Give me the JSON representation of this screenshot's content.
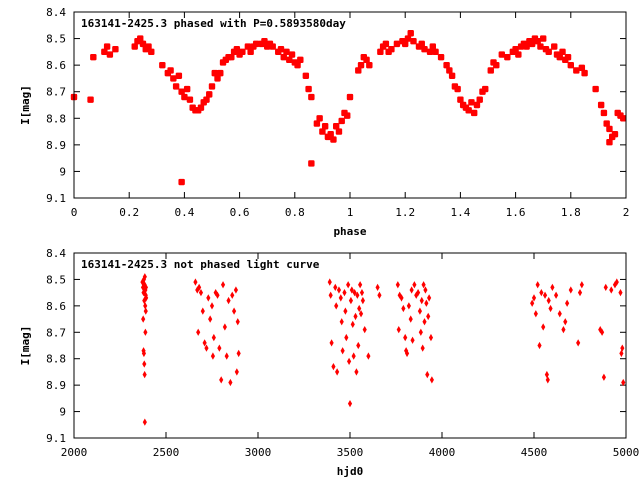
{
  "chart_data": [
    {
      "type": "scatter",
      "title": "163141-2425.3 phased with P=0.5893580day",
      "xlabel": "phase",
      "ylabel": "I[mag]",
      "xlim": [
        0,
        2
      ],
      "ylim": [
        9.1,
        8.4
      ],
      "y_inverted": true,
      "xticks": [
        "0",
        "0.2",
        "0.4",
        "0.6",
        "0.8",
        "1",
        "1.2",
        "1.4",
        "1.6",
        "1.8",
        "2"
      ],
      "yticks": [
        "8.4",
        "8.5",
        "8.6",
        "8.7",
        "8.8",
        "8.9",
        "9",
        "9.1"
      ],
      "marker_color": "#ff0000",
      "grid": false,
      "points": [
        [
          0.0,
          8.72
        ],
        [
          0.06,
          8.73
        ],
        [
          0.07,
          8.57
        ],
        [
          0.11,
          8.55
        ],
        [
          0.12,
          8.53
        ],
        [
          0.13,
          8.56
        ],
        [
          0.15,
          8.54
        ],
        [
          0.22,
          8.53
        ],
        [
          0.23,
          8.51
        ],
        [
          0.24,
          8.5
        ],
        [
          0.25,
          8.52
        ],
        [
          0.26,
          8.54
        ],
        [
          0.27,
          8.53
        ],
        [
          0.28,
          8.55
        ],
        [
          0.32,
          8.6
        ],
        [
          0.34,
          8.63
        ],
        [
          0.35,
          8.62
        ],
        [
          0.36,
          8.65
        ],
        [
          0.37,
          8.68
        ],
        [
          0.38,
          8.64
        ],
        [
          0.39,
          8.7
        ],
        [
          0.39,
          9.04
        ],
        [
          0.4,
          8.72
        ],
        [
          0.41,
          8.69
        ],
        [
          0.42,
          8.73
        ],
        [
          0.43,
          8.76
        ],
        [
          0.44,
          8.77
        ],
        [
          0.45,
          8.77
        ],
        [
          0.46,
          8.76
        ],
        [
          0.47,
          8.74
        ],
        [
          0.48,
          8.73
        ],
        [
          0.49,
          8.71
        ],
        [
          0.5,
          8.68
        ],
        [
          0.51,
          8.63
        ],
        [
          0.52,
          8.65
        ],
        [
          0.53,
          8.63
        ],
        [
          0.54,
          8.59
        ],
        [
          0.55,
          8.58
        ],
        [
          0.56,
          8.57
        ],
        [
          0.57,
          8.57
        ],
        [
          0.58,
          8.55
        ],
        [
          0.59,
          8.54
        ],
        [
          0.6,
          8.56
        ],
        [
          0.61,
          8.55
        ],
        [
          0.63,
          8.53
        ],
        [
          0.64,
          8.55
        ],
        [
          0.65,
          8.53
        ],
        [
          0.66,
          8.52
        ],
        [
          0.68,
          8.52
        ],
        [
          0.69,
          8.51
        ],
        [
          0.7,
          8.53
        ],
        [
          0.71,
          8.52
        ],
        [
          0.72,
          8.53
        ],
        [
          0.74,
          8.55
        ],
        [
          0.75,
          8.54
        ],
        [
          0.76,
          8.57
        ],
        [
          0.77,
          8.55
        ],
        [
          0.78,
          8.58
        ],
        [
          0.79,
          8.56
        ],
        [
          0.8,
          8.59
        ],
        [
          0.81,
          8.6
        ],
        [
          0.82,
          8.58
        ],
        [
          0.84,
          8.64
        ],
        [
          0.85,
          8.69
        ],
        [
          0.86,
          8.72
        ],
        [
          0.86,
          8.97
        ],
        [
          0.88,
          8.82
        ],
        [
          0.89,
          8.8
        ],
        [
          0.9,
          8.85
        ],
        [
          0.91,
          8.83
        ],
        [
          0.92,
          8.87
        ],
        [
          0.93,
          8.86
        ],
        [
          0.94,
          8.88
        ],
        [
          0.95,
          8.83
        ],
        [
          0.96,
          8.85
        ],
        [
          0.97,
          8.81
        ],
        [
          0.98,
          8.78
        ],
        [
          0.99,
          8.79
        ],
        [
          1.0,
          8.72
        ],
        [
          1.03,
          8.62
        ],
        [
          1.04,
          8.6
        ],
        [
          1.05,
          8.57
        ],
        [
          1.06,
          8.58
        ],
        [
          1.07,
          8.6
        ],
        [
          1.11,
          8.55
        ],
        [
          1.12,
          8.53
        ],
        [
          1.13,
          8.52
        ],
        [
          1.14,
          8.55
        ],
        [
          1.15,
          8.54
        ],
        [
          1.17,
          8.52
        ],
        [
          1.19,
          8.51
        ],
        [
          1.2,
          8.52
        ],
        [
          1.21,
          8.5
        ],
        [
          1.22,
          8.48
        ],
        [
          1.23,
          8.51
        ],
        [
          1.25,
          8.53
        ],
        [
          1.26,
          8.52
        ],
        [
          1.27,
          8.54
        ],
        [
          1.29,
          8.55
        ],
        [
          1.3,
          8.53
        ],
        [
          1.31,
          8.55
        ],
        [
          1.33,
          8.57
        ],
        [
          1.35,
          8.6
        ],
        [
          1.36,
          8.62
        ],
        [
          1.37,
          8.64
        ],
        [
          1.38,
          8.68
        ],
        [
          1.39,
          8.69
        ],
        [
          1.4,
          8.73
        ],
        [
          1.41,
          8.75
        ],
        [
          1.42,
          8.76
        ],
        [
          1.43,
          8.77
        ],
        [
          1.44,
          8.74
        ],
        [
          1.45,
          8.78
        ],
        [
          1.46,
          8.75
        ],
        [
          1.47,
          8.73
        ],
        [
          1.48,
          8.7
        ],
        [
          1.49,
          8.69
        ],
        [
          1.51,
          8.62
        ],
        [
          1.52,
          8.59
        ],
        [
          1.53,
          8.6
        ],
        [
          1.55,
          8.56
        ],
        [
          1.57,
          8.57
        ],
        [
          1.59,
          8.55
        ],
        [
          1.6,
          8.54
        ],
        [
          1.61,
          8.56
        ],
        [
          1.62,
          8.53
        ],
        [
          1.63,
          8.52
        ],
        [
          1.64,
          8.53
        ],
        [
          1.65,
          8.51
        ],
        [
          1.66,
          8.52
        ],
        [
          1.67,
          8.5
        ],
        [
          1.68,
          8.51
        ],
        [
          1.69,
          8.53
        ],
        [
          1.7,
          8.5
        ],
        [
          1.71,
          8.54
        ],
        [
          1.72,
          8.55
        ],
        [
          1.74,
          8.53
        ],
        [
          1.75,
          8.56
        ],
        [
          1.76,
          8.57
        ],
        [
          1.77,
          8.55
        ],
        [
          1.78,
          8.58
        ],
        [
          1.79,
          8.57
        ],
        [
          1.8,
          8.6
        ],
        [
          1.82,
          8.62
        ],
        [
          1.84,
          8.61
        ],
        [
          1.85,
          8.63
        ],
        [
          1.89,
          8.69
        ],
        [
          1.91,
          8.75
        ],
        [
          1.92,
          8.78
        ],
        [
          1.93,
          8.82
        ],
        [
          1.94,
          8.84
        ],
        [
          1.94,
          8.89
        ],
        [
          1.95,
          8.87
        ],
        [
          1.96,
          8.86
        ],
        [
          1.97,
          8.78
        ],
        [
          1.98,
          8.79
        ],
        [
          1.99,
          8.8
        ]
      ]
    },
    {
      "type": "scatter",
      "title": "163141-2425.3 not phased light curve",
      "xlabel": "hjd0",
      "ylabel": "I[mag]",
      "xlim": [
        2000,
        5000
      ],
      "ylim": [
        9.1,
        8.4
      ],
      "y_inverted": true,
      "xticks": [
        "2000",
        "2500",
        "3000",
        "3500",
        "4000",
        "4500",
        "5000"
      ],
      "yticks": [
        "8.4",
        "8.5",
        "8.6",
        "8.7",
        "8.8",
        "8.9",
        "9",
        "9.1"
      ],
      "marker_color": "#ff0000",
      "grid": false,
      "points": [
        [
          2372,
          8.51
        ],
        [
          2375,
          8.53
        ],
        [
          2378,
          8.55
        ],
        [
          2380,
          8.5
        ],
        [
          2382,
          8.58
        ],
        [
          2384,
          8.52
        ],
        [
          2385,
          8.49
        ],
        [
          2387,
          8.6
        ],
        [
          2388,
          8.54
        ],
        [
          2390,
          8.56
        ],
        [
          2391,
          8.53
        ],
        [
          2392,
          8.57
        ],
        [
          2376,
          8.65
        ],
        [
          2378,
          8.77
        ],
        [
          2380,
          8.78
        ],
        [
          2382,
          8.82
        ],
        [
          2384,
          8.86
        ],
        [
          2385,
          9.04
        ],
        [
          2388,
          8.7
        ],
        [
          2390,
          8.62
        ],
        [
          2670,
          8.54
        ],
        [
          2680,
          8.53
        ],
        [
          2690,
          8.55
        ],
        [
          2700,
          8.62
        ],
        [
          2710,
          8.74
        ],
        [
          2720,
          8.76
        ],
        [
          2730,
          8.57
        ],
        [
          2740,
          8.65
        ],
        [
          2750,
          8.6
        ],
        [
          2755,
          8.79
        ],
        [
          2760,
          8.72
        ],
        [
          2770,
          8.55
        ],
        [
          2780,
          8.56
        ],
        [
          2790,
          8.76
        ],
        [
          2800,
          8.88
        ],
        [
          2810,
          8.52
        ],
        [
          2820,
          8.68
        ],
        [
          2830,
          8.79
        ],
        [
          2840,
          8.58
        ],
        [
          2850,
          8.89
        ],
        [
          2860,
          8.56
        ],
        [
          2870,
          8.62
        ],
        [
          2880,
          8.54
        ],
        [
          2885,
          8.85
        ],
        [
          2890,
          8.66
        ],
        [
          2895,
          8.78
        ],
        [
          2660,
          8.51
        ],
        [
          2675,
          8.7
        ],
        [
          3390,
          8.51
        ],
        [
          3395,
          8.56
        ],
        [
          3400,
          8.74
        ],
        [
          3410,
          8.83
        ],
        [
          3420,
          8.53
        ],
        [
          3425,
          8.6
        ],
        [
          3430,
          8.85
        ],
        [
          3440,
          8.54
        ],
        [
          3450,
          8.57
        ],
        [
          3455,
          8.66
        ],
        [
          3460,
          8.77
        ],
        [
          3470,
          8.55
        ],
        [
          3475,
          8.62
        ],
        [
          3480,
          8.72
        ],
        [
          3490,
          8.52
        ],
        [
          3495,
          8.81
        ],
        [
          3500,
          8.97
        ],
        [
          3505,
          8.58
        ],
        [
          3510,
          8.54
        ],
        [
          3515,
          8.67
        ],
        [
          3520,
          8.79
        ],
        [
          3525,
          8.55
        ],
        [
          3530,
          8.64
        ],
        [
          3535,
          8.85
        ],
        [
          3540,
          8.56
        ],
        [
          3545,
          8.75
        ],
        [
          3550,
          8.61
        ],
        [
          3555,
          8.52
        ],
        [
          3560,
          8.63
        ],
        [
          3565,
          8.55
        ],
        [
          3570,
          8.58
        ],
        [
          3580,
          8.69
        ],
        [
          3600,
          8.79
        ],
        [
          3650,
          8.53
        ],
        [
          3660,
          8.56
        ],
        [
          3760,
          8.52
        ],
        [
          3765,
          8.69
        ],
        [
          3770,
          8.56
        ],
        [
          3780,
          8.57
        ],
        [
          3790,
          8.61
        ],
        [
          3800,
          8.72
        ],
        [
          3805,
          8.77
        ],
        [
          3810,
          8.78
        ],
        [
          3820,
          8.6
        ],
        [
          3830,
          8.65
        ],
        [
          3835,
          8.54
        ],
        [
          3840,
          8.73
        ],
        [
          3850,
          8.52
        ],
        [
          3860,
          8.56
        ],
        [
          3870,
          8.55
        ],
        [
          3880,
          8.62
        ],
        [
          3885,
          8.7
        ],
        [
          3890,
          8.58
        ],
        [
          3895,
          8.76
        ],
        [
          3900,
          8.52
        ],
        [
          3905,
          8.66
        ],
        [
          3910,
          8.54
        ],
        [
          3915,
          8.59
        ],
        [
          3920,
          8.86
        ],
        [
          3925,
          8.64
        ],
        [
          3930,
          8.57
        ],
        [
          3940,
          8.72
        ],
        [
          3945,
          8.88
        ],
        [
          4490,
          8.59
        ],
        [
          4500,
          8.57
        ],
        [
          4510,
          8.63
        ],
        [
          4520,
          8.52
        ],
        [
          4530,
          8.75
        ],
        [
          4540,
          8.55
        ],
        [
          4550,
          8.68
        ],
        [
          4560,
          8.56
        ],
        [
          4570,
          8.86
        ],
        [
          4575,
          8.88
        ],
        [
          4580,
          8.58
        ],
        [
          4590,
          8.61
        ],
        [
          4600,
          8.53
        ],
        [
          4620,
          8.56
        ],
        [
          4640,
          8.63
        ],
        [
          4660,
          8.69
        ],
        [
          4670,
          8.66
        ],
        [
          4680,
          8.59
        ],
        [
          4700,
          8.54
        ],
        [
          4740,
          8.74
        ],
        [
          4750,
          8.55
        ],
        [
          4760,
          8.52
        ],
        [
          4860,
          8.69
        ],
        [
          4870,
          8.7
        ],
        [
          4880,
          8.87
        ],
        [
          4890,
          8.53
        ],
        [
          4920,
          8.54
        ],
        [
          4940,
          8.52
        ],
        [
          4950,
          8.51
        ],
        [
          4970,
          8.55
        ],
        [
          4975,
          8.78
        ],
        [
          4980,
          8.76
        ],
        [
          4985,
          8.89
        ]
      ]
    }
  ]
}
